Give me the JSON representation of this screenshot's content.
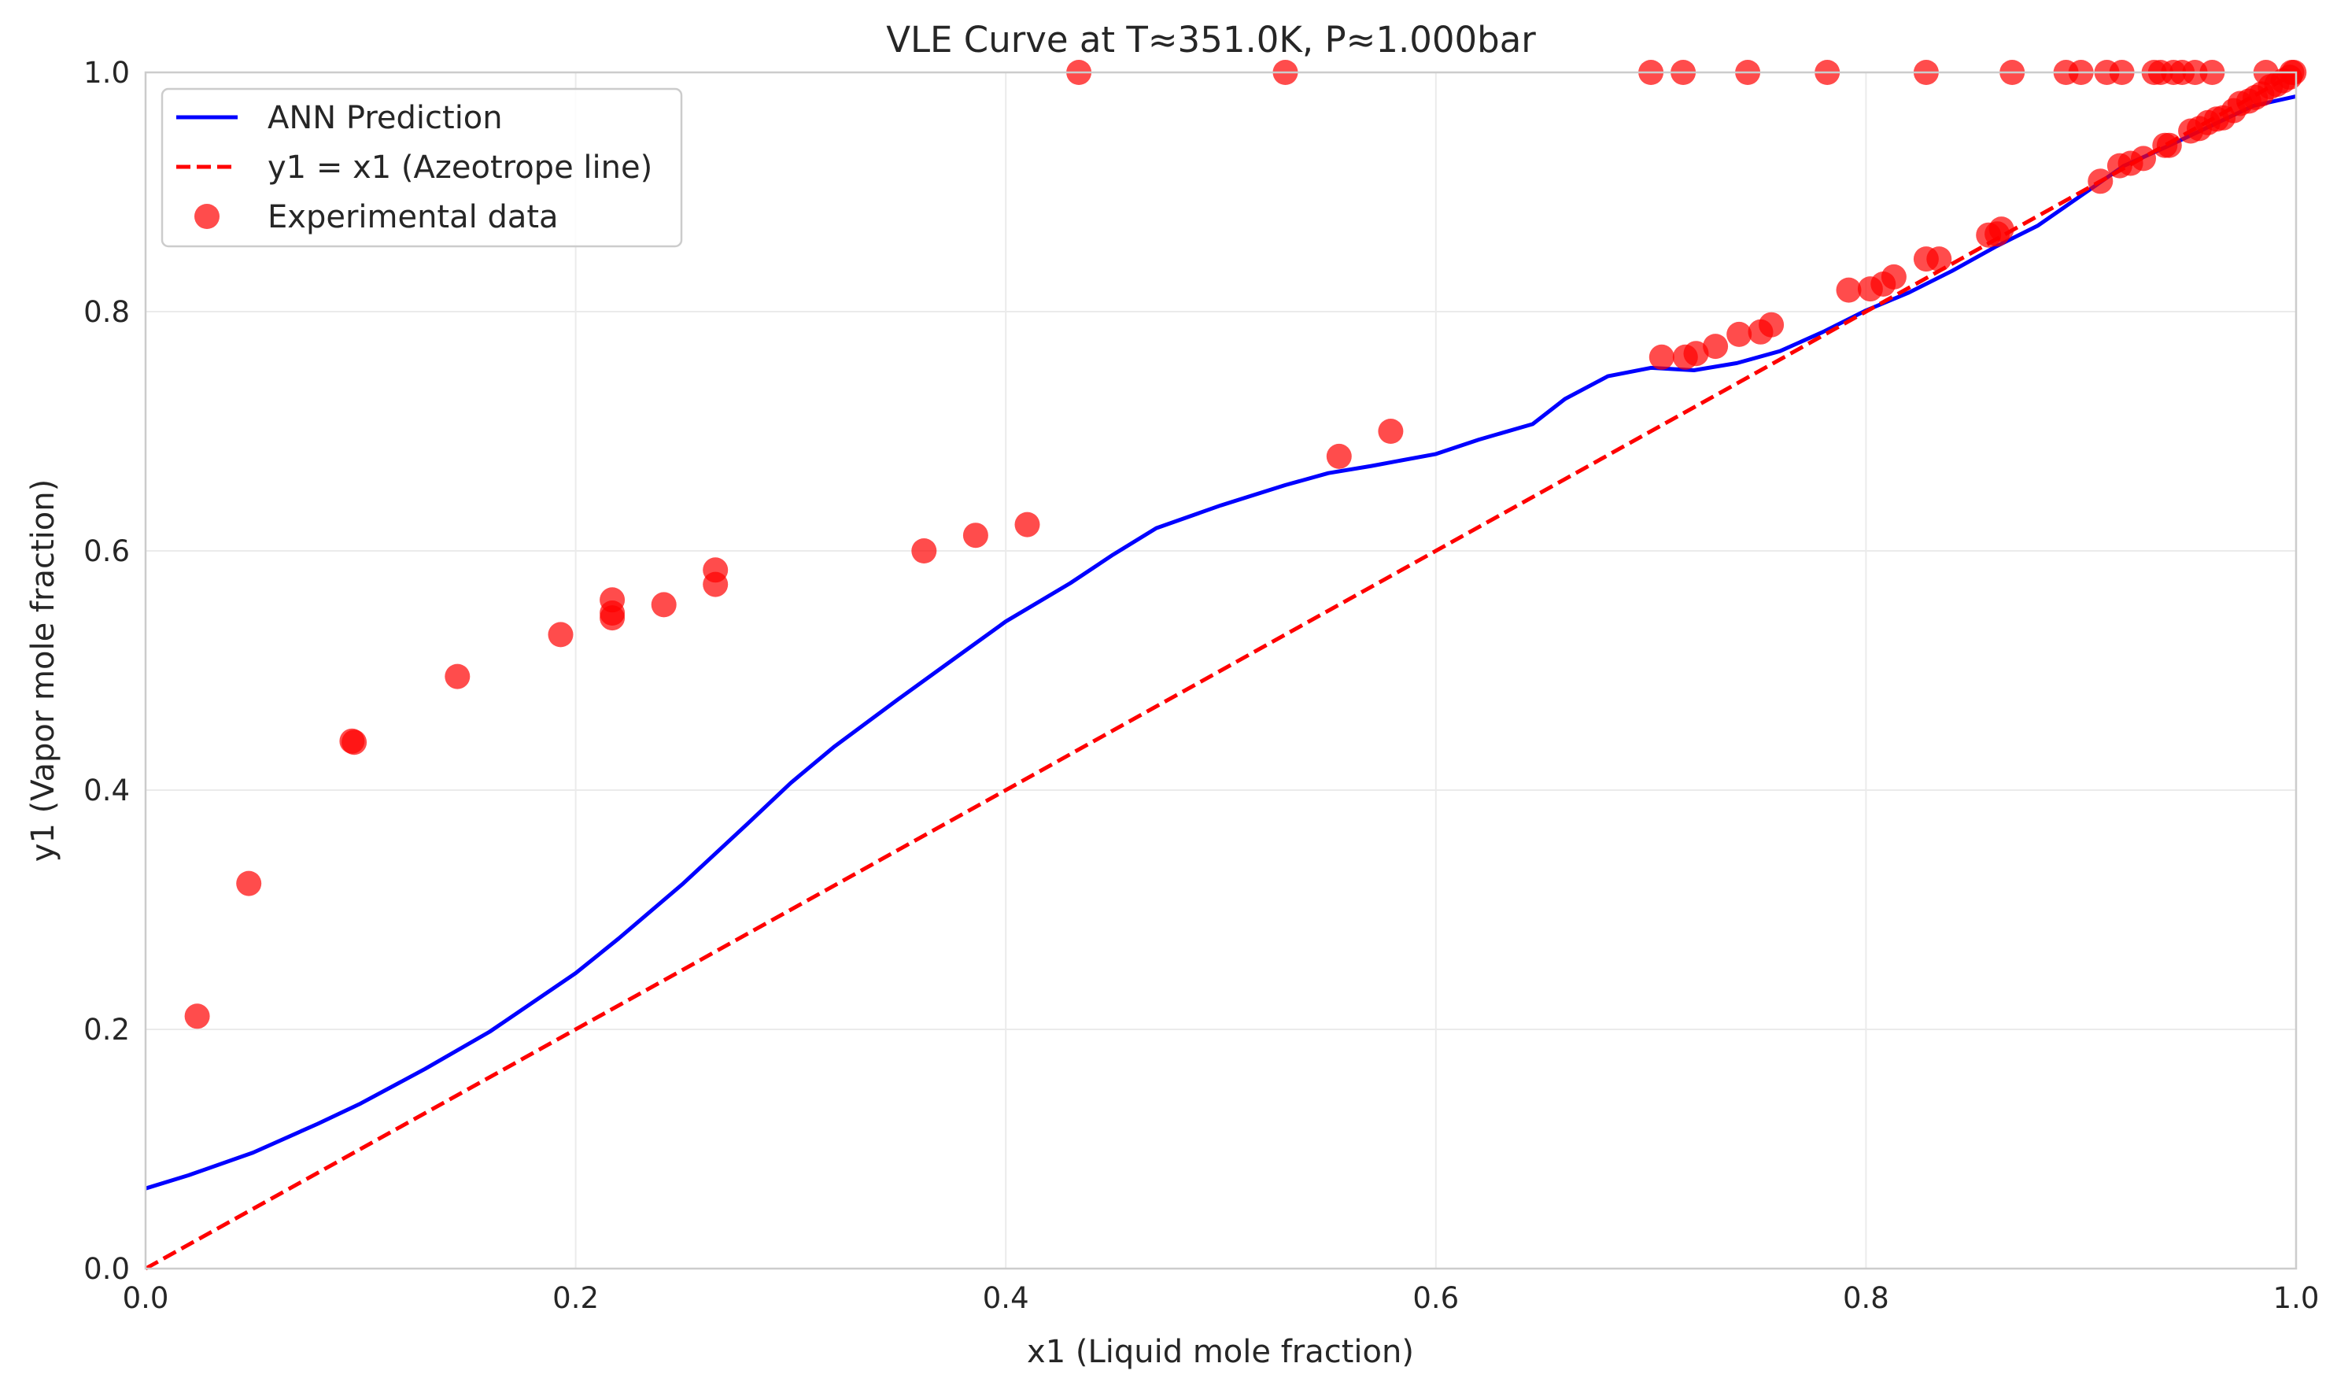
{
  "chart_data": {
    "type": "scatter",
    "title": "VLE Curve at T≈351.0K, P≈1.000bar",
    "xlabel": "x1 (Liquid mole fraction)",
    "ylabel": "y1 (Vapor mole fraction)",
    "xlim": [
      0.0,
      1.0
    ],
    "ylim": [
      0.0,
      1.0
    ],
    "xticks": [
      "0.0",
      "0.2",
      "0.4",
      "0.6",
      "0.8",
      "1.0"
    ],
    "yticks": [
      "0.0",
      "0.2",
      "0.4",
      "0.6",
      "0.8",
      "1.0"
    ],
    "grid": true,
    "legend_position": "top-left",
    "series": [
      {
        "name": "ANN Prediction",
        "kind": "line",
        "style": "solid",
        "color": "#0000ff",
        "points": [
          [
            0.0,
            0.067
          ],
          [
            0.02,
            0.078
          ],
          [
            0.05,
            0.097
          ],
          [
            0.08,
            0.121
          ],
          [
            0.1,
            0.138
          ],
          [
            0.13,
            0.167
          ],
          [
            0.16,
            0.198
          ],
          [
            0.2,
            0.247
          ],
          [
            0.22,
            0.276
          ],
          [
            0.25,
            0.322
          ],
          [
            0.28,
            0.372
          ],
          [
            0.3,
            0.406
          ],
          [
            0.32,
            0.436
          ],
          [
            0.35,
            0.476
          ],
          [
            0.38,
            0.515
          ],
          [
            0.4,
            0.541
          ],
          [
            0.43,
            0.573
          ],
          [
            0.45,
            0.597
          ],
          [
            0.47,
            0.619
          ],
          [
            0.5,
            0.638
          ],
          [
            0.53,
            0.655
          ],
          [
            0.55,
            0.665
          ],
          [
            0.57,
            0.671
          ],
          [
            0.6,
            0.681
          ],
          [
            0.62,
            0.693
          ],
          [
            0.645,
            0.706
          ],
          [
            0.66,
            0.727
          ],
          [
            0.68,
            0.746
          ],
          [
            0.7,
            0.753
          ],
          [
            0.72,
            0.751
          ],
          [
            0.74,
            0.757
          ],
          [
            0.76,
            0.767
          ],
          [
            0.78,
            0.783
          ],
          [
            0.8,
            0.801
          ],
          [
            0.82,
            0.816
          ],
          [
            0.84,
            0.834
          ],
          [
            0.86,
            0.854
          ],
          [
            0.88,
            0.872
          ],
          [
            0.9,
            0.897
          ],
          [
            0.92,
            0.922
          ],
          [
            0.94,
            0.938
          ],
          [
            0.96,
            0.955
          ],
          [
            0.98,
            0.972
          ],
          [
            1.0,
            0.98
          ]
        ]
      },
      {
        "name": "y1 = x1 (Azeotrope line)",
        "kind": "line",
        "style": "dashed",
        "color": "#ff0000",
        "points": [
          [
            0.0,
            0.0
          ],
          [
            1.0,
            1.0
          ]
        ]
      },
      {
        "name": "Experimental data",
        "kind": "scatter",
        "color": "#ff0000",
        "points": [
          [
            0.024,
            0.211
          ],
          [
            0.048,
            0.322
          ],
          [
            0.096,
            0.441
          ],
          [
            0.097,
            0.44
          ],
          [
            0.145,
            0.495
          ],
          [
            0.193,
            0.53
          ],
          [
            0.217,
            0.559
          ],
          [
            0.217,
            0.548
          ],
          [
            0.217,
            0.544
          ],
          [
            0.241,
            0.555
          ],
          [
            0.265,
            0.584
          ],
          [
            0.265,
            0.572
          ],
          [
            0.362,
            0.6
          ],
          [
            0.386,
            0.613
          ],
          [
            0.41,
            0.622
          ],
          [
            0.434,
            1.0
          ],
          [
            0.53,
            1.0
          ],
          [
            0.555,
            0.679
          ],
          [
            0.579,
            0.7
          ],
          [
            0.7,
            1.0
          ],
          [
            0.705,
            0.762
          ],
          [
            0.715,
            1.0
          ],
          [
            0.716,
            0.762
          ],
          [
            0.721,
            0.765
          ],
          [
            0.73,
            0.771
          ],
          [
            0.741,
            0.781
          ],
          [
            0.745,
            1.0
          ],
          [
            0.751,
            0.783
          ],
          [
            0.756,
            0.789
          ],
          [
            0.782,
            1.0
          ],
          [
            0.792,
            0.818
          ],
          [
            0.802,
            0.819
          ],
          [
            0.808,
            0.823
          ],
          [
            0.813,
            0.829
          ],
          [
            0.828,
            0.844
          ],
          [
            0.828,
            1.0
          ],
          [
            0.834,
            0.844
          ],
          [
            0.857,
            0.864
          ],
          [
            0.861,
            0.865
          ],
          [
            0.863,
            0.869
          ],
          [
            0.868,
            1.0
          ],
          [
            0.893,
            1.0
          ],
          [
            0.9,
            1.0
          ],
          [
            0.909,
            0.909
          ],
          [
            0.912,
            1.0
          ],
          [
            0.918,
            0.922
          ],
          [
            0.919,
            1.0
          ],
          [
            0.923,
            0.924
          ],
          [
            0.929,
            0.928
          ],
          [
            0.934,
            1.0
          ],
          [
            0.937,
            1.0
          ],
          [
            0.939,
            0.939
          ],
          [
            0.941,
            0.939
          ],
          [
            0.943,
            1.0
          ],
          [
            0.947,
            1.0
          ],
          [
            0.951,
            0.951
          ],
          [
            0.953,
            1.0
          ],
          [
            0.955,
            0.953
          ],
          [
            0.959,
            0.958
          ],
          [
            0.961,
            1.0
          ],
          [
            0.963,
            0.961
          ],
          [
            0.966,
            0.962
          ],
          [
            0.971,
            0.968
          ],
          [
            0.974,
            0.974
          ],
          [
            0.978,
            0.976
          ],
          [
            0.981,
            0.979
          ],
          [
            0.984,
            0.982
          ],
          [
            0.986,
            1.0
          ],
          [
            0.988,
            0.988
          ],
          [
            0.991,
            0.99
          ],
          [
            0.994,
            0.993
          ],
          [
            0.997,
            0.996
          ],
          [
            0.999,
            1.0
          ],
          [
            0.998,
            1.0
          ]
        ]
      }
    ]
  }
}
